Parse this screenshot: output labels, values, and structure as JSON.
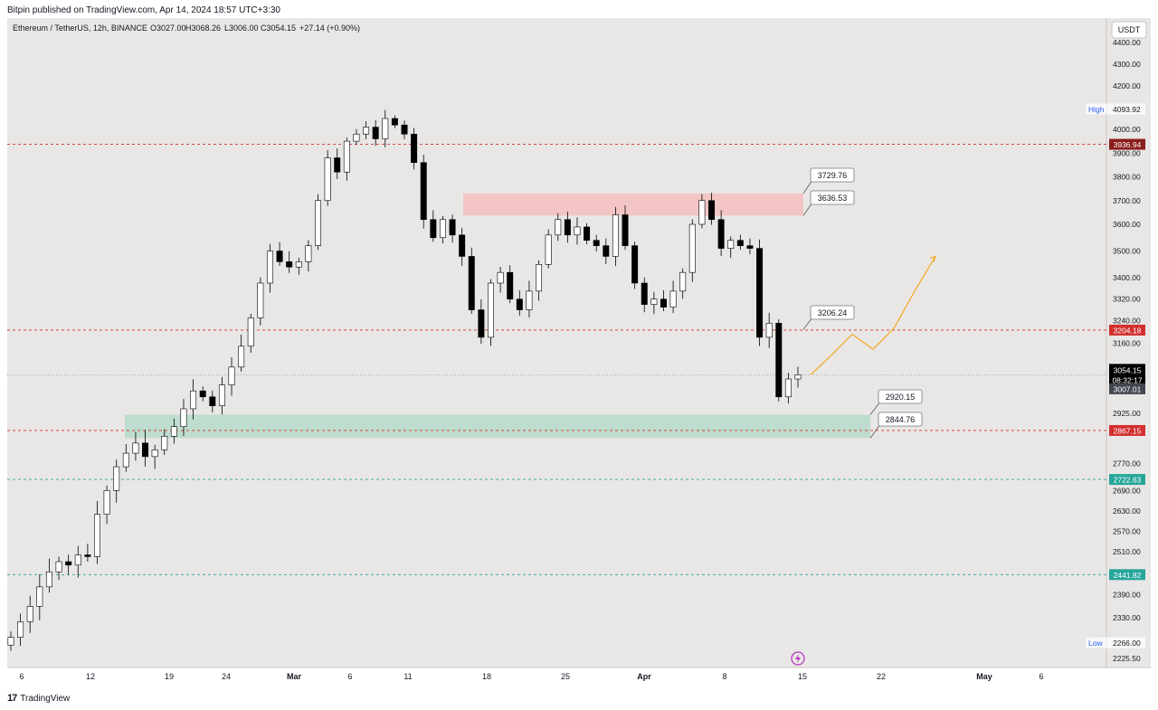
{
  "header": {
    "published": "Bitpin published on TradingView.com, Apr 14, 2024 18:57 UTC+3:30"
  },
  "footer": {
    "brand": "TradingView",
    "logo_icon": "tradingview-logo-icon"
  },
  "colors": {
    "background": "#e9e7e5",
    "up_candle": "#ffffff",
    "down_candle": "#000000",
    "resistance_zone": "#f4c1c1",
    "support_zone": "#b9dccb",
    "red_level": "#d32f2f",
    "green_level": "#26a69a",
    "projection": "#f5a623"
  },
  "chart_data": {
    "type": "candlestick",
    "title": "Ethereum / TetherUS, 12h, BINANCE",
    "ohlc": {
      "open": "O3027.00",
      "high": "H3068.26",
      "low": "L3006.00",
      "close": "C3054.15",
      "change": "+27.14 (+0.90%)"
    },
    "currency": "USDT",
    "ylim": [
      2200,
      4500
    ],
    "y_ticks": [
      "4400.00",
      "4300.00",
      "4200.00",
      "4000.00",
      "3900.00",
      "3800.00",
      "3700.00",
      "3600.00",
      "3500.00",
      "3400.00",
      "3320.00",
      "3240.00",
      "3160.00",
      "2925.00",
      "2770.00",
      "2690.00",
      "2630.00",
      "2570.00",
      "2510.00",
      "2390.00",
      "2330.00",
      "2225.50"
    ],
    "x_ticks": [
      "6",
      "12",
      "19",
      "24",
      "Mar",
      "6",
      "11",
      "18",
      "25",
      "Apr",
      "8",
      "15",
      "22",
      "May",
      "6"
    ],
    "high_label": {
      "text": "High",
      "value": "4093.92"
    },
    "low_label": {
      "text": "Low",
      "value": "2266.00"
    },
    "last_price": {
      "value": "3054.15",
      "countdown": "08:32:17",
      "secondary": "3007.01"
    },
    "levels": [
      {
        "value": 3936.94,
        "label": "3936.94",
        "color": "red"
      },
      {
        "value": 3204.18,
        "label": "3204.18",
        "color": "red"
      },
      {
        "value": 2867.15,
        "label": "2867.15",
        "color": "red"
      },
      {
        "value": 2722.63,
        "label": "2722.63",
        "color": "green"
      },
      {
        "value": 2441.82,
        "label": "2441.82",
        "color": "green"
      }
    ],
    "zones": [
      {
        "name": "resistance",
        "from": 3636.53,
        "to": 3729.76
      },
      {
        "name": "support",
        "from": 2844.76,
        "to": 2920.15
      }
    ],
    "callouts": [
      "3729.76",
      "3636.53",
      "3206.24",
      "2920.15",
      "2844.76"
    ],
    "projection": [
      3054,
      3120,
      3190,
      3140,
      3210,
      3350,
      3480
    ],
    "closes": [
      2280,
      2320,
      2360,
      2410,
      2450,
      2480,
      2470,
      2500,
      2495,
      2620,
      2690,
      2760,
      2800,
      2830,
      2790,
      2810,
      2850,
      2880,
      2940,
      3000,
      2980,
      2950,
      3020,
      3080,
      3150,
      3250,
      3380,
      3500,
      3460,
      3440,
      3460,
      3520,
      3700,
      3880,
      3820,
      3950,
      3980,
      4010,
      3960,
      4050,
      4020,
      3980,
      3860,
      3620,
      3550,
      3620,
      3560,
      3480,
      3280,
      3180,
      3380,
      3420,
      3320,
      3280,
      3350,
      3450,
      3560,
      3620,
      3560,
      3590,
      3540,
      3520,
      3480,
      3640,
      3520,
      3380,
      3300,
      3320,
      3290,
      3350,
      3420,
      3600,
      3700,
      3620,
      3510,
      3540,
      3520,
      3510,
      3180,
      3230,
      2980,
      3040,
      3054
    ]
  }
}
